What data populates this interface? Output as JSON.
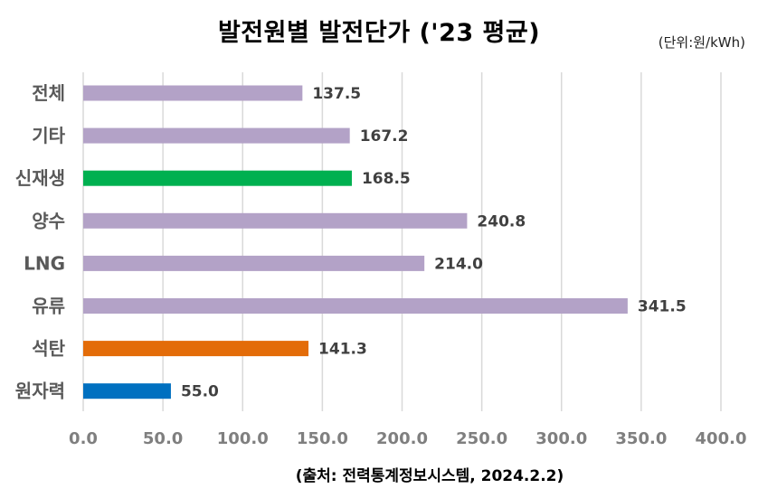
{
  "header": {
    "title": "발전원별 발전단가 ('23 평균)",
    "unit": "(단위:원/kWh)"
  },
  "footer": {
    "source": "(출처: 전력통계정보시스템, 2024.2.2)"
  },
  "chart_data": {
    "type": "bar",
    "orientation": "horizontal",
    "categories": [
      "전체",
      "기타",
      "신재생",
      "양수",
      "LNG",
      "유류",
      "석탄",
      "원자력"
    ],
    "values": [
      137.5,
      167.2,
      168.5,
      240.8,
      214.0,
      341.5,
      141.3,
      55.0
    ],
    "value_labels": [
      "137.5",
      "167.2",
      "168.5",
      "240.8",
      "214.0",
      "341.5",
      "141.3",
      "55.0"
    ],
    "colors": [
      "#b3a2c7",
      "#b3a2c7",
      "#00b050",
      "#b3a2c7",
      "#b3a2c7",
      "#b3a2c7",
      "#e36c09",
      "#0070c0"
    ],
    "xlim": [
      0,
      400
    ],
    "xticks": [
      0,
      50,
      100,
      150,
      200,
      250,
      300,
      350,
      400
    ],
    "xtick_labels": [
      "0.0",
      "50.0",
      "100.0",
      "150.0",
      "200.0",
      "250.0",
      "300.0",
      "350.0",
      "400.0"
    ],
    "grid": true,
    "legend": false
  }
}
